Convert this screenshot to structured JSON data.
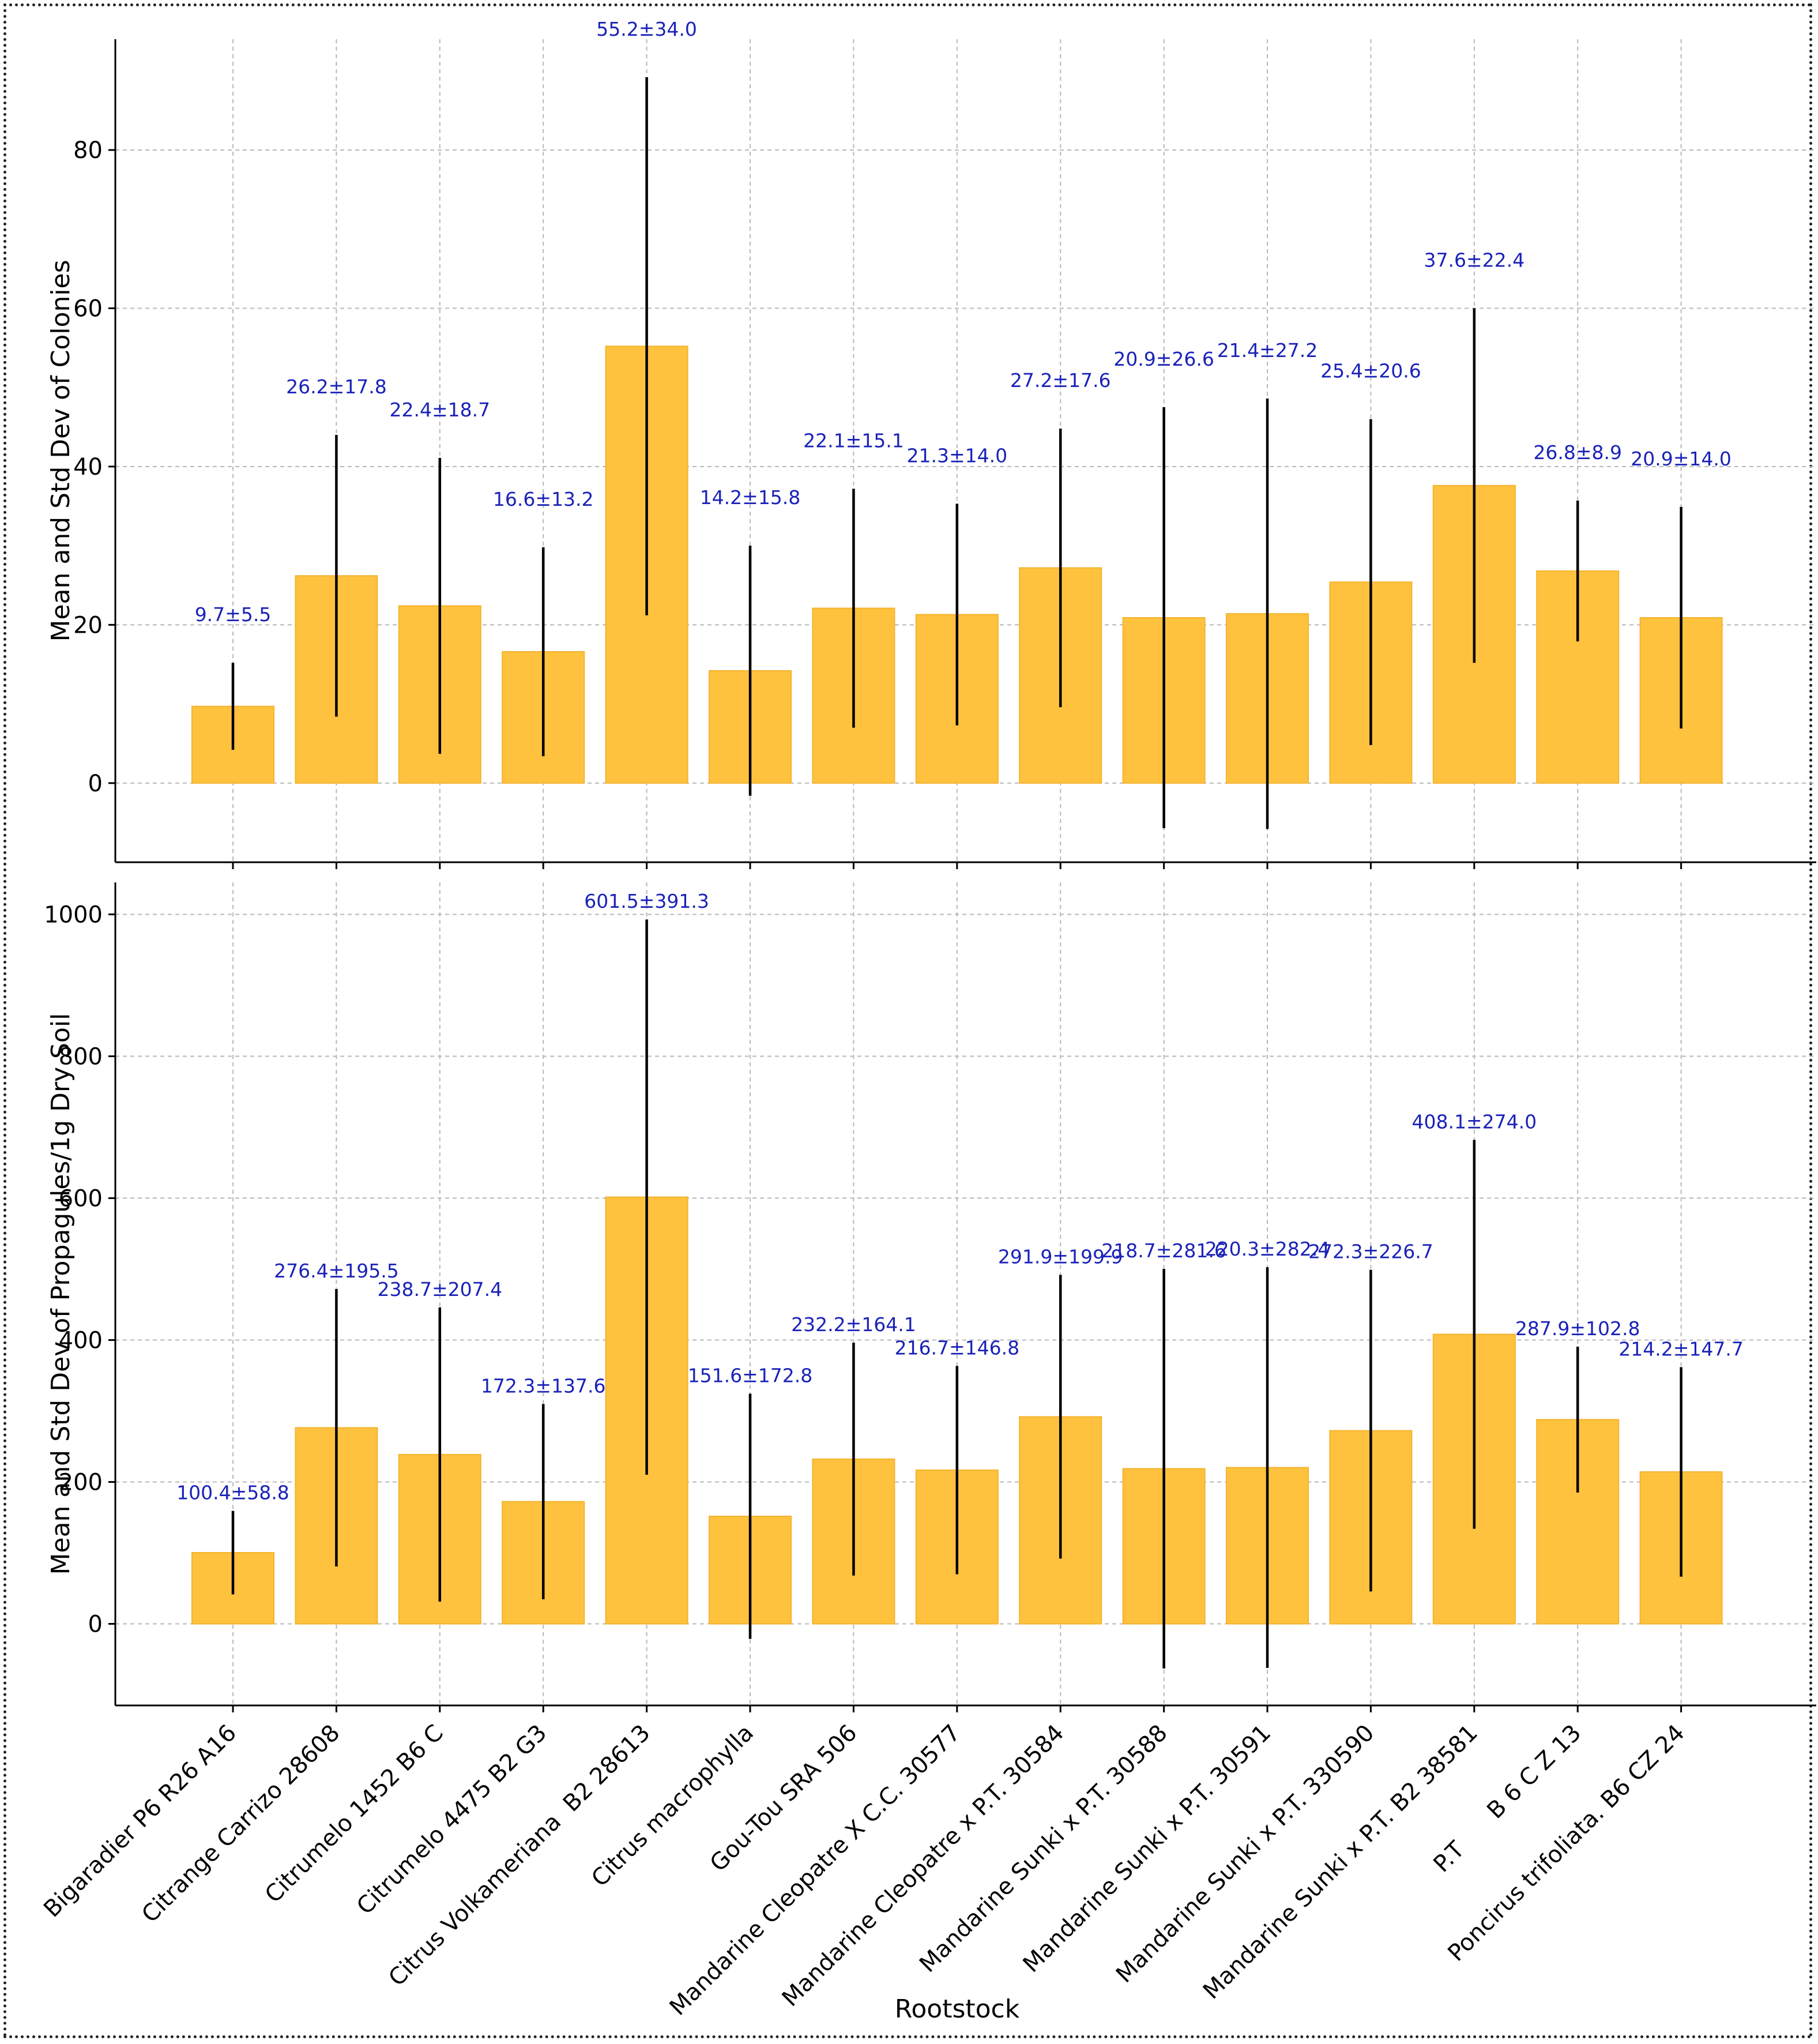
{
  "chart_data": [
    {
      "type": "bar",
      "title": "",
      "xlabel": "",
      "ylabel": "Mean and Std Dev of Colonies",
      "ylim": [
        -10,
        94
      ],
      "yticks": [
        0,
        20,
        40,
        60,
        80
      ],
      "categories": [
        "Bigaradier P6 R26 A16",
        "Citrange Carrizo 28608",
        "Citrumelo 1452 B6 C",
        "Citrumelo 4475 B2 G3",
        "Citrus Volkameriana  B2 28613",
        "Citrus macrophylla",
        "Gou-Tou SRA 506",
        "Mandarine Cleopatre X C.C. 30577",
        "Mandarine Cleopatre x P.T. 30584",
        "Mandarine Sunki x P.T. 30588",
        "Mandarine Sunki x P.T. 30591",
        "Mandarine Sunki x P.T. 330590",
        "Mandarine Sunki x P.T. B2 38581",
        "P.T      B 6 C Z 13",
        "Poncirus trifoliata. B6 CZ 24"
      ],
      "values": [
        9.7,
        26.2,
        22.4,
        16.6,
        55.2,
        14.2,
        22.1,
        21.3,
        27.2,
        20.9,
        21.4,
        25.4,
        37.6,
        26.8,
        20.9
      ],
      "errors": [
        5.5,
        17.8,
        18.7,
        13.2,
        34.0,
        15.8,
        15.1,
        14.0,
        17.6,
        26.6,
        27.2,
        20.6,
        22.4,
        8.9,
        14.0
      ],
      "labels": [
        "9.7±5.5",
        "26.2±17.8",
        "22.4±18.7",
        "16.6±13.2",
        "55.2±34.0",
        "14.2±15.8",
        "22.1±15.1",
        "21.3±14.0",
        "27.2±17.6",
        "20.9±26.6",
        "21.4±27.2",
        "25.4±20.6",
        "37.6±22.4",
        "26.8±8.9",
        "20.9±14.0"
      ],
      "grid": true,
      "bar_color": "#fec23e",
      "label_color": "#1a22b8"
    },
    {
      "type": "bar",
      "title": "",
      "xlabel": "Rootstock",
      "ylabel": "Mean and Std Dev of Propagules/1g Dry Soil",
      "ylim": [
        -115,
        1045
      ],
      "yticks": [
        0,
        200,
        400,
        600,
        800,
        1000
      ],
      "categories": [
        "Bigaradier P6 R26 A16",
        "Citrange Carrizo 28608",
        "Citrumelo 1452 B6 C",
        "Citrumelo 4475 B2 G3",
        "Citrus Volkameriana  B2 28613",
        "Citrus macrophylla",
        "Gou-Tou SRA 506",
        "Mandarine Cleopatre X C.C. 30577",
        "Mandarine Cleopatre x P.T. 30584",
        "Mandarine Sunki x P.T. 30588",
        "Mandarine Sunki x P.T. 30591",
        "Mandarine Sunki x P.T. 330590",
        "Mandarine Sunki x P.T. B2 38581",
        "P.T      B 6 C Z 13",
        "Poncirus trifoliata. B6 CZ 24"
      ],
      "values": [
        100.4,
        276.4,
        238.7,
        172.3,
        601.5,
        151.6,
        232.2,
        216.7,
        291.9,
        218.7,
        220.3,
        272.3,
        408.1,
        287.9,
        214.2
      ],
      "errors": [
        58.8,
        195.5,
        207.4,
        137.6,
        391.3,
        172.8,
        164.1,
        146.8,
        199.9,
        281.6,
        282.4,
        226.7,
        274.0,
        102.8,
        147.7
      ],
      "labels": [
        "100.4±58.8",
        "276.4±195.5",
        "238.7±207.4",
        "172.3±137.6",
        "601.5±391.3",
        "151.6±172.8",
        "232.2±164.1",
        "216.7±146.8",
        "291.9±199.9",
        "218.7±281.6",
        "220.3±282.4",
        "272.3±226.7",
        "408.1±274.0",
        "287.9±102.8",
        "214.2±147.7"
      ],
      "grid": true,
      "bar_color": "#fec23e",
      "label_color": "#1a22b8"
    }
  ]
}
